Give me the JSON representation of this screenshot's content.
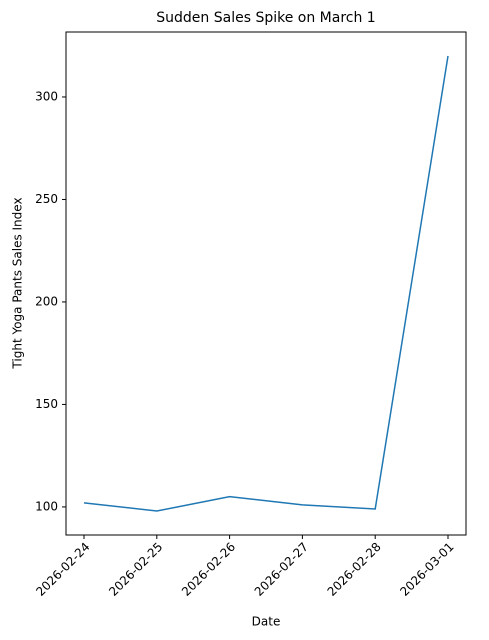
{
  "chart_data": {
    "type": "line",
    "title": "Sudden Sales Spike on March 1",
    "x_label": "Date",
    "y_label": "Tight Yoga Pants Sales Index",
    "categories": [
      "2026-02-24",
      "2026-02-25",
      "2026-02-26",
      "2026-02-27",
      "2026-02-28",
      "2026-03-01"
    ],
    "values": [
      102,
      98,
      105,
      101,
      99,
      320
    ],
    "color": "#1f77b4",
    "ylim": [
      86.3,
      331.7
    ],
    "yticks": [
      100,
      150,
      200,
      250,
      300
    ],
    "grid": false
  }
}
